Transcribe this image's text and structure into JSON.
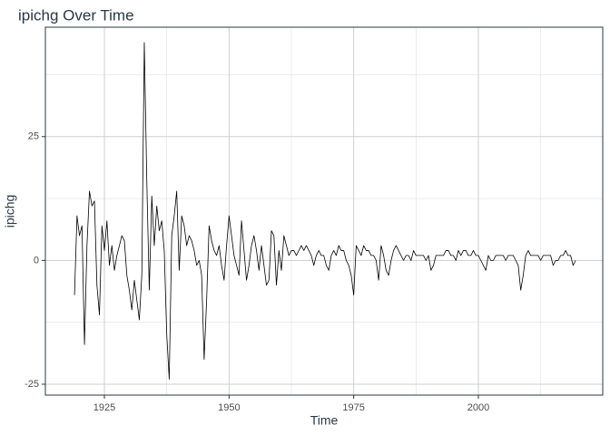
{
  "chart_data": {
    "type": "line",
    "title": "ipichg Over Time",
    "x_label": "Time",
    "y_label": "ipichg",
    "color": "#000000",
    "grid": true,
    "xlim": [
      1913.16,
      2024.95
    ],
    "ylim": [
      -27.2,
      47.1
    ],
    "xticks": [
      1925,
      1950,
      1975,
      2000
    ],
    "yticks": [
      -25,
      0,
      25
    ],
    "x_minor_grid": [
      1937.5,
      1962.5,
      1987.5,
      2012.5
    ],
    "y_minor_grid": [
      -12.5,
      12.5,
      37.5
    ],
    "x": [
      1919,
      1919.5,
      1920,
      1920.5,
      1921,
      1921.5,
      1922,
      1922.5,
      1923,
      1923.5,
      1924,
      1924.5,
      1925,
      1925.5,
      1926,
      1926.5,
      1927,
      1927.5,
      1928,
      1928.5,
      1929,
      1929.5,
      1930,
      1930.5,
      1931,
      1931.5,
      1932,
      1932.5,
      1933,
      1933.5,
      1934,
      1934.5,
      1935,
      1935.5,
      1936,
      1936.5,
      1937,
      1937.5,
      1938,
      1938.5,
      1939,
      1939.5,
      1940,
      1940.5,
      1941,
      1941.5,
      1942,
      1942.5,
      1943,
      1943.5,
      1944,
      1944.5,
      1945,
      1945.5,
      1946,
      1946.5,
      1947,
      1947.5,
      1948,
      1948.5,
      1949,
      1949.5,
      1950,
      1950.5,
      1951,
      1951.5,
      1952,
      1952.5,
      1953,
      1953.5,
      1954,
      1954.5,
      1955,
      1955.5,
      1956,
      1956.5,
      1957,
      1957.5,
      1958,
      1958.5,
      1959,
      1959.5,
      1960,
      1960.5,
      1961,
      1961.5,
      1962,
      1962.5,
      1963,
      1963.5,
      1964,
      1964.5,
      1965,
      1965.5,
      1966,
      1966.5,
      1967,
      1967.5,
      1968,
      1968.5,
      1969,
      1969.5,
      1970,
      1970.5,
      1971,
      1971.5,
      1972,
      1972.5,
      1973,
      1973.5,
      1974,
      1974.5,
      1975,
      1975.5,
      1976,
      1976.5,
      1977,
      1977.5,
      1978,
      1978.5,
      1979,
      1979.5,
      1980,
      1980.5,
      1981,
      1981.5,
      1982,
      1982.5,
      1983,
      1983.5,
      1984,
      1984.5,
      1985,
      1985.5,
      1986,
      1986.5,
      1987,
      1987.5,
      1988,
      1988.5,
      1989,
      1989.5,
      1990,
      1990.5,
      1991,
      1991.5,
      1992,
      1992.5,
      1993,
      1993.5,
      1994,
      1994.5,
      1995,
      1995.5,
      1996,
      1996.5,
      1997,
      1997.5,
      1998,
      1998.5,
      1999,
      1999.5,
      2000,
      2000.5,
      2001,
      2001.5,
      2002,
      2002.5,
      2003,
      2003.5,
      2004,
      2004.5,
      2005,
      2005.5,
      2006,
      2006.5,
      2007,
      2007.5,
      2008,
      2008.5,
      2009,
      2009.5,
      2010,
      2010.5,
      2011,
      2011.5,
      2012,
      2012.5,
      2013,
      2013.5,
      2014,
      2014.5,
      2015,
      2015.5,
      2016,
      2016.5,
      2017,
      2017.5,
      2018,
      2018.5,
      2019,
      2019.5
    ],
    "values": [
      -7,
      9,
      5,
      7,
      -17,
      3,
      14,
      11,
      12,
      -5,
      -11,
      7,
      2,
      8,
      -1,
      3,
      -2,
      1,
      3,
      5,
      4,
      -3,
      -6,
      -10,
      -4,
      -8,
      -12,
      -3,
      44,
      16,
      -6,
      13,
      3,
      11,
      6,
      8,
      2,
      -15,
      -24,
      5,
      9,
      14,
      -2,
      9,
      7,
      3,
      5,
      4,
      2,
      -1,
      0,
      -3,
      -20,
      -8,
      7,
      4,
      2,
      1,
      3,
      -1,
      -4,
      3,
      9,
      5,
      1,
      -1,
      -3,
      8,
      2,
      -4,
      -1,
      3,
      5,
      2,
      -2,
      3,
      -1,
      -5,
      -4,
      6,
      5,
      -5,
      2,
      -2,
      5,
      3,
      1,
      2,
      2,
      1,
      2,
      3,
      2,
      3,
      2,
      1,
      -1,
      1,
      2,
      1,
      1,
      -1,
      -2,
      1,
      2,
      1,
      3,
      2,
      2,
      0,
      -1,
      -3,
      -7,
      3,
      2,
      1,
      3,
      2,
      2,
      1,
      1,
      0,
      -4,
      3,
      1,
      -2,
      -3,
      0,
      2,
      3,
      2,
      1,
      0,
      1,
      1,
      0,
      2,
      1,
      1,
      1,
      1,
      0,
      1,
      -2,
      -1,
      1,
      1,
      1,
      1,
      2,
      2,
      1,
      1,
      0,
      2,
      1,
      2,
      2,
      1,
      1,
      2,
      1,
      1,
      0,
      -1,
      -2,
      1,
      0,
      0,
      1,
      1,
      1,
      1,
      0,
      1,
      1,
      1,
      0,
      -1,
      -6,
      -3,
      1,
      2,
      1,
      1,
      1,
      1,
      0,
      1,
      1,
      1,
      1,
      -1,
      0,
      0,
      1,
      1,
      2,
      1,
      1,
      -1,
      0
    ]
  }
}
